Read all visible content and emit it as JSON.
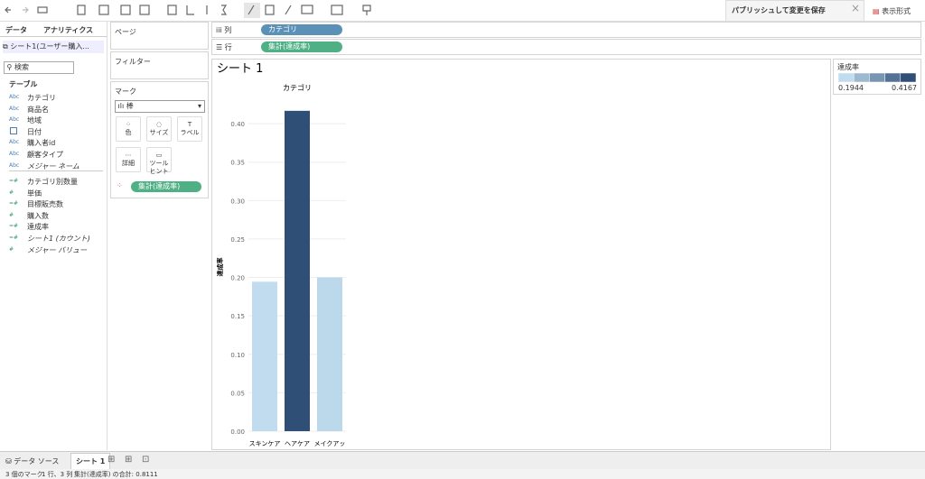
{
  "toolbar": {
    "publish": "パブリッシュして変更を保存",
    "show_me": "表示形式"
  },
  "data_pane": {
    "tabs": [
      "データ",
      "アナリティクス"
    ],
    "source": "シート1(ユーザー購入...",
    "search": "検索",
    "section": "テーブル",
    "dimensions": [
      {
        "icon": "Abc",
        "name": "カテゴリ"
      },
      {
        "icon": "Abc",
        "name": "商品名"
      },
      {
        "icon": "Abc",
        "name": "地域"
      },
      {
        "name": "日付"
      },
      {
        "icon": "Abc",
        "name": "購入者id"
      },
      {
        "icon": "Abc",
        "name": "顧客タイプ"
      },
      {
        "icon": "Abc",
        "name": "メジャー ネーム"
      }
    ],
    "measures": [
      {
        "icon": "=#",
        "name": "カテゴリ別数量"
      },
      {
        "icon": "#",
        "name": "単価"
      },
      {
        "icon": "=#",
        "name": "目標販売数"
      },
      {
        "icon": "#",
        "name": "購入数"
      },
      {
        "icon": "=#",
        "name": "達成率"
      },
      {
        "icon": "=#",
        "name": "シート1 (カウント)"
      },
      {
        "icon": "#",
        "name": "メジャー バリュー"
      }
    ]
  },
  "cards": {
    "pages": "ページ",
    "filters": "フィルター",
    "marks": "マーク",
    "mark_type": "棒",
    "buttons": [
      "色",
      "サイズ",
      "ラベル",
      "詳細",
      "ツールヒント"
    ],
    "pill": "集計(達成率)"
  },
  "shelves": {
    "columns": {
      "label": "列",
      "pill": "カテゴリ"
    },
    "rows": {
      "label": "行",
      "pill": "集計(達成率)"
    }
  },
  "chart_data": {
    "type": "bar",
    "title": "シート 1",
    "x_header": "カテゴリ",
    "y_label": "達成率",
    "categories": [
      "スキンケア",
      "ヘアケア",
      "メイクアッ"
    ],
    "values": [
      0.1944,
      0.4167,
      0.2
    ],
    "color_range": [
      "#c0dcee",
      "#2f4f77"
    ],
    "ylim": [
      0,
      0.44
    ],
    "yticks": [
      {
        "value": 0,
        "label": "0.00"
      },
      {
        "value": 0.05,
        "label": "0.05"
      },
      {
        "value": 0.1,
        "label": "0.10"
      },
      {
        "value": 0.15,
        "label": "0.15"
      },
      {
        "value": 0.2,
        "label": "0.20"
      },
      {
        "value": 0.25,
        "label": "0.25"
      },
      {
        "value": 0.3,
        "label": "0.30"
      },
      {
        "value": 0.35,
        "label": "0.35"
      },
      {
        "value": 0.4,
        "label": "0.40"
      }
    ],
    "grid": true
  },
  "legend": {
    "title": "達成率",
    "min": 0.1944,
    "max": 0.4167
  },
  "tabs": [
    "データ ソース",
    "シート 1"
  ],
  "status": [
    "3 個のマーク",
    "1 行、3 列",
    "集計(達成率) の合計: 0.8111"
  ]
}
